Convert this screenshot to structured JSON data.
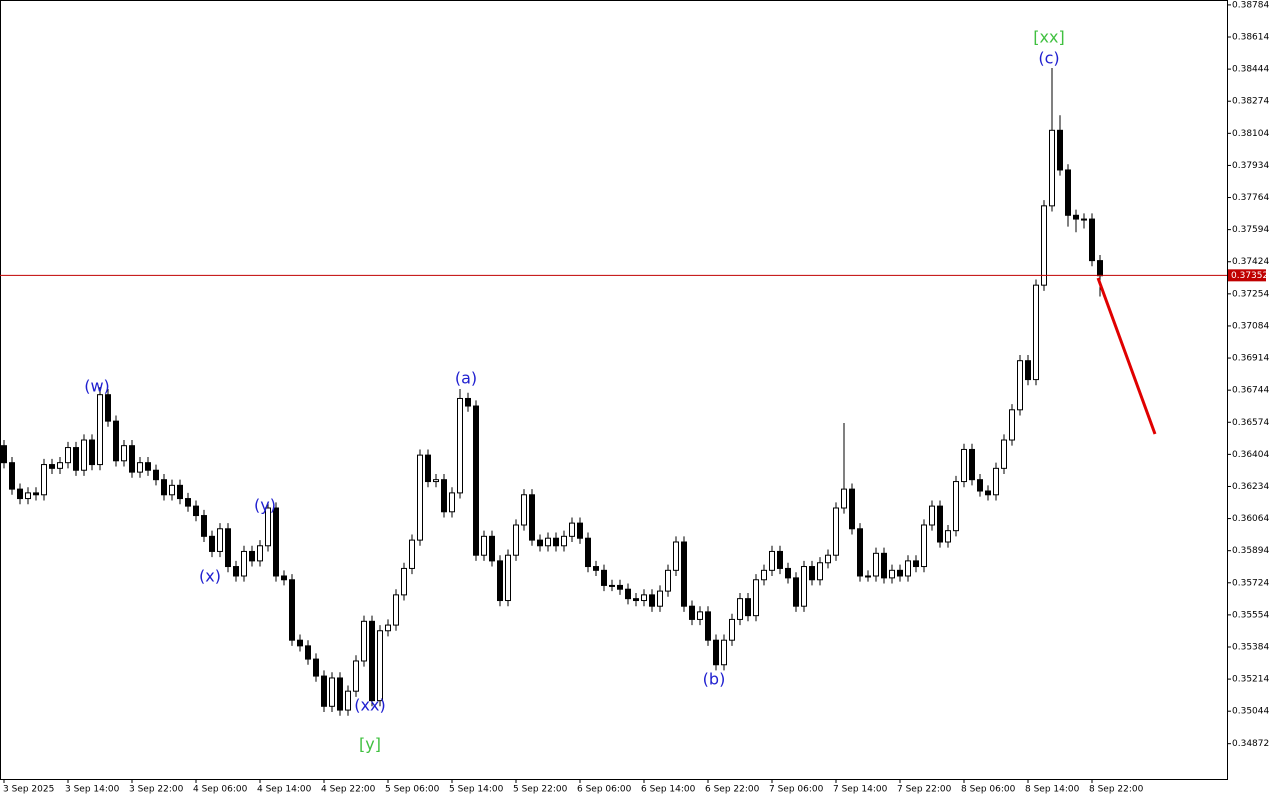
{
  "chart_data": {
    "type": "candlestick",
    "open": [
      0.3645,
      0.3636,
      0.3622,
      0.3617,
      0.362,
      0.3619,
      0.3635,
      0.3633,
      0.3636,
      0.3644,
      0.3632,
      0.3648,
      0.3635,
      0.3672,
      0.3658,
      0.3637,
      0.3645,
      0.3631,
      0.3636,
      0.3632,
      0.3627,
      0.3619,
      0.3624,
      0.3617,
      0.3613,
      0.3608,
      0.3597,
      0.3589,
      0.3601,
      0.3581,
      0.3576,
      0.3589,
      0.3584,
      0.3592,
      0.3612,
      0.3576,
      0.3574,
      0.3542,
      0.3539,
      0.3532,
      0.3523,
      0.3507,
      0.3522,
      0.3505,
      0.3515,
      0.3531,
      0.3552,
      0.351,
      0.3547,
      0.355,
      0.3566,
      0.358,
      0.3595,
      0.364,
      0.3626,
      0.3627,
      0.361,
      0.362,
      0.367,
      0.3666,
      0.3587,
      0.3597,
      0.3584,
      0.3563,
      0.3587,
      0.3603,
      0.3619,
      0.3595,
      0.3592,
      0.3596,
      0.3592,
      0.3597,
      0.3604,
      0.3596,
      0.3581,
      0.3579,
      0.3571,
      0.3571,
      0.3569,
      0.3564,
      0.3563,
      0.3566,
      0.356,
      0.3568,
      0.3579,
      0.3594,
      0.356,
      0.3553,
      0.3557,
      0.3542,
      0.3529,
      0.3542,
      0.3553,
      0.3564,
      0.3555,
      0.3574,
      0.3579,
      0.3589,
      0.358,
      0.3575,
      0.356,
      0.3581,
      0.3574,
      0.3583,
      0.3587,
      0.3612,
      0.3622,
      0.3601,
      0.3576,
      0.3576,
      0.3588,
      0.3575,
      0.3579,
      0.3576,
      0.3584,
      0.3581,
      0.3603,
      0.3613,
      0.3594,
      0.36,
      0.3626,
      0.3643,
      0.3627,
      0.3621,
      0.3619,
      0.3633,
      0.3648,
      0.3664,
      0.369,
      0.368,
      0.373,
      0.3772,
      0.3812,
      0.3791,
      0.3767,
      0.3765,
      0.3765,
      0.3743
    ],
    "high": [
      0.3648,
      0.3639,
      0.3625,
      0.3623,
      0.3623,
      0.3638,
      0.3638,
      0.3639,
      0.3647,
      0.3647,
      0.3651,
      0.3651,
      0.3676,
      0.3675,
      0.3661,
      0.3648,
      0.3648,
      0.3639,
      0.3639,
      0.3635,
      0.363,
      0.3627,
      0.3627,
      0.362,
      0.3616,
      0.3611,
      0.36,
      0.3604,
      0.3604,
      0.3584,
      0.3592,
      0.3592,
      0.3595,
      0.3615,
      0.3615,
      0.3579,
      0.3577,
      0.3545,
      0.3542,
      0.3535,
      0.3526,
      0.3525,
      0.3525,
      0.3518,
      0.3534,
      0.3555,
      0.3555,
      0.355,
      0.3553,
      0.3569,
      0.3583,
      0.3598,
      0.3643,
      0.3643,
      0.363,
      0.363,
      0.3623,
      0.3675,
      0.3673,
      0.3669,
      0.36,
      0.36,
      0.3587,
      0.359,
      0.3606,
      0.3622,
      0.3622,
      0.3598,
      0.3599,
      0.3599,
      0.36,
      0.3607,
      0.3607,
      0.3599,
      0.3584,
      0.3582,
      0.3574,
      0.3574,
      0.3572,
      0.3567,
      0.3569,
      0.3569,
      0.3571,
      0.3582,
      0.3597,
      0.3597,
      0.3563,
      0.356,
      0.356,
      0.3545,
      0.3545,
      0.3556,
      0.3567,
      0.3567,
      0.3577,
      0.3582,
      0.3592,
      0.3592,
      0.3583,
      0.3578,
      0.3584,
      0.3584,
      0.3586,
      0.359,
      0.3615,
      0.3657,
      0.3625,
      0.3604,
      0.3579,
      0.3591,
      0.3591,
      0.3582,
      0.3582,
      0.3587,
      0.3587,
      0.3606,
      0.3616,
      0.3616,
      0.3603,
      0.3629,
      0.3646,
      0.3646,
      0.363,
      0.3624,
      0.3636,
      0.3651,
      0.3667,
      0.3693,
      0.3693,
      0.3733,
      0.3775,
      0.3845,
      0.382,
      0.3794,
      0.377,
      0.3768,
      0.3768,
      0.3746
    ],
    "low": [
      0.3633,
      0.3619,
      0.3614,
      0.3614,
      0.3616,
      0.3616,
      0.363,
      0.363,
      0.3633,
      0.3629,
      0.3629,
      0.3632,
      0.3632,
      0.3655,
      0.3634,
      0.3634,
      0.3628,
      0.3628,
      0.3629,
      0.3624,
      0.3616,
      0.3616,
      0.3614,
      0.361,
      0.3605,
      0.3594,
      0.3586,
      0.3586,
      0.3578,
      0.3573,
      0.3573,
      0.3581,
      0.3581,
      0.3589,
      0.3573,
      0.3571,
      0.3539,
      0.3536,
      0.3529,
      0.352,
      0.3504,
      0.3504,
      0.3502,
      0.3502,
      0.3512,
      0.3528,
      0.3507,
      0.3507,
      0.3544,
      0.3547,
      0.3563,
      0.3577,
      0.3592,
      0.3623,
      0.3623,
      0.3607,
      0.3607,
      0.3617,
      0.3663,
      0.3584,
      0.3584,
      0.3581,
      0.356,
      0.356,
      0.3584,
      0.36,
      0.3592,
      0.3589,
      0.3589,
      0.3589,
      0.3589,
      0.3594,
      0.3593,
      0.3578,
      0.3576,
      0.3568,
      0.3568,
      0.3566,
      0.3561,
      0.356,
      0.356,
      0.3557,
      0.3557,
      0.3565,
      0.3576,
      0.3557,
      0.355,
      0.355,
      0.3539,
      0.3526,
      0.3526,
      0.3539,
      0.355,
      0.3552,
      0.3552,
      0.3571,
      0.3576,
      0.3577,
      0.3572,
      0.3557,
      0.3557,
      0.3571,
      0.3571,
      0.358,
      0.3584,
      0.3609,
      0.3598,
      0.3573,
      0.3573,
      0.3573,
      0.3572,
      0.3572,
      0.3573,
      0.3573,
      0.3578,
      0.3578,
      0.36,
      0.3591,
      0.3591,
      0.3597,
      0.3623,
      0.3624,
      0.3618,
      0.3616,
      0.3616,
      0.363,
      0.3645,
      0.3661,
      0.3677,
      0.3677,
      0.3727,
      0.3769,
      0.3788,
      0.3761,
      0.3758,
      0.376,
      0.374,
      0.3724
    ],
    "close": [
      0.3636,
      0.3622,
      0.3617,
      0.362,
      0.3619,
      0.3635,
      0.3633,
      0.3636,
      0.3644,
      0.3632,
      0.3648,
      0.3635,
      0.3672,
      0.3658,
      0.3637,
      0.3645,
      0.3631,
      0.3636,
      0.3632,
      0.3627,
      0.3619,
      0.3624,
      0.3617,
      0.3613,
      0.3608,
      0.3597,
      0.3589,
      0.3601,
      0.3581,
      0.3576,
      0.3589,
      0.3584,
      0.3592,
      0.3612,
      0.3576,
      0.3574,
      0.3542,
      0.3539,
      0.3532,
      0.3523,
      0.3507,
      0.3522,
      0.3505,
      0.3515,
      0.3531,
      0.3552,
      0.351,
      0.3547,
      0.355,
      0.3566,
      0.358,
      0.3595,
      0.364,
      0.3626,
      0.3627,
      0.361,
      0.362,
      0.367,
      0.3666,
      0.3587,
      0.3597,
      0.3584,
      0.3563,
      0.3587,
      0.3603,
      0.3619,
      0.3595,
      0.3592,
      0.3596,
      0.3592,
      0.3597,
      0.3604,
      0.3596,
      0.3581,
      0.3579,
      0.3571,
      0.3571,
      0.3569,
      0.3564,
      0.3563,
      0.3566,
      0.356,
      0.3568,
      0.3579,
      0.3594,
      0.356,
      0.3553,
      0.3557,
      0.3542,
      0.3529,
      0.3542,
      0.3553,
      0.3564,
      0.3555,
      0.3574,
      0.3579,
      0.3589,
      0.358,
      0.3575,
      0.356,
      0.3581,
      0.3574,
      0.3583,
      0.3587,
      0.3612,
      0.3622,
      0.3601,
      0.3576,
      0.3576,
      0.3588,
      0.3575,
      0.3579,
      0.3576,
      0.3584,
      0.3581,
      0.3603,
      0.3613,
      0.3594,
      0.36,
      0.3626,
      0.3643,
      0.3627,
      0.3621,
      0.3619,
      0.3633,
      0.3648,
      0.3664,
      0.369,
      0.368,
      0.373,
      0.3772,
      0.3812,
      0.3791,
      0.3767,
      0.3765,
      0.3765,
      0.3743,
      0.3735
    ],
    "bull_color": "#ffffff",
    "bear_color": "#000000",
    "current_price": 0.37352,
    "current_price_color": "#c00000",
    "ylim": [
      0.34685,
      0.3881
    ],
    "yticks": [
      0.38784,
      0.38614,
      0.38444,
      0.38274,
      0.38104,
      0.37934,
      0.37764,
      0.37594,
      0.37424,
      0.37254,
      0.37084,
      0.36914,
      0.36744,
      0.36574,
      0.36404,
      0.36234,
      0.36064,
      0.35894,
      0.35724,
      0.35554,
      0.35384,
      0.35214,
      0.35044,
      0.34872
    ],
    "x_labels": [
      "3 Sep 2025",
      "3 Sep 14:00",
      "3 Sep 22:00",
      "4 Sep 06:00",
      "4 Sep 14:00",
      "4 Sep 22:00",
      "5 Sep 06:00",
      "5 Sep 14:00",
      "5 Sep 22:00",
      "6 Sep 06:00",
      "6 Sep 14:00",
      "6 Sep 22:00",
      "7 Sep 06:00",
      "7 Sep 14:00",
      "7 Sep 22:00",
      "8 Sep 06:00",
      "8 Sep 14:00",
      "8 Sep 22:00"
    ],
    "grid": true,
    "annotations": [
      "(w)",
      "(x)",
      "(y)",
      "(xx)",
      "[y]",
      "(a)",
      "(b)",
      "[xx]",
      "(c)"
    ]
  }
}
